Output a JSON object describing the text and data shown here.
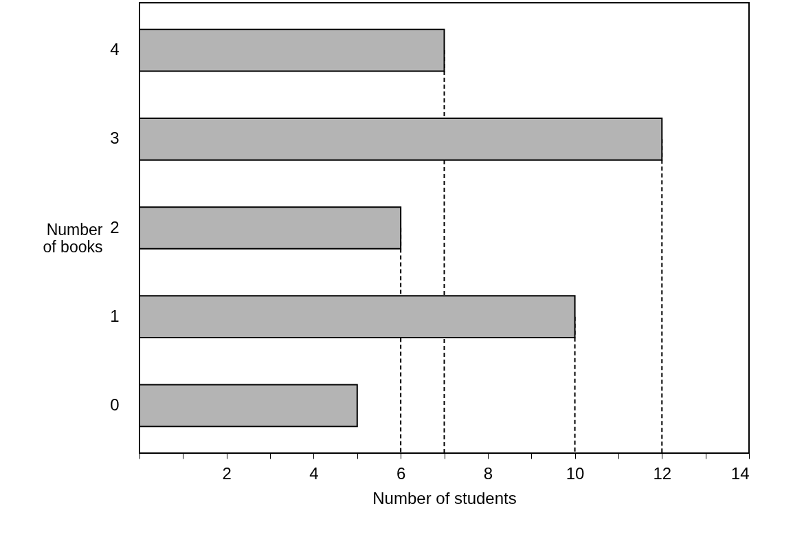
{
  "chart_data": {
    "type": "bar",
    "orientation": "horizontal",
    "categories": [
      "4",
      "3",
      "2",
      "1",
      "0"
    ],
    "values": [
      7,
      12,
      6,
      10,
      5
    ],
    "color": "#b4b4b4",
    "xlabel": "Number of students",
    "ylabel": "Number of books",
    "xlim": [
      0,
      14
    ],
    "xticks": [
      {
        "value": 0,
        "label": null
      },
      {
        "value": 1,
        "label": null
      },
      2,
      {
        "value": 3,
        "label": null
      },
      4,
      {
        "value": 5,
        "label": null
      },
      6,
      {
        "value": 7,
        "label": null
      },
      8,
      {
        "value": 9,
        "label": null
      },
      10,
      {
        "value": 11,
        "label": null
      },
      12,
      {
        "value": 13,
        "label": null
      },
      14
    ],
    "grid": false,
    "ref_lines": [
      {
        "axis": "x",
        "value": 6,
        "line_style": "dashed"
      },
      {
        "axis": "x",
        "value": 7,
        "line_style": "dashed"
      },
      {
        "axis": "x",
        "value": 10,
        "line_style": "dashed"
      },
      {
        "axis": "x",
        "value": 12,
        "line_style": "dashed"
      }
    ]
  }
}
